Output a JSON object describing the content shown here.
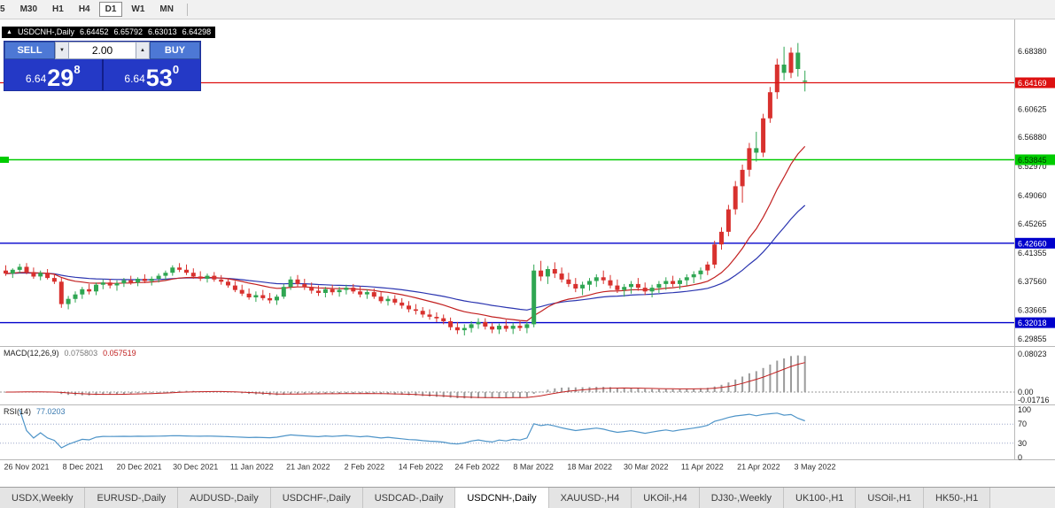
{
  "toolbar": {
    "timeframes": [
      "5",
      "M30",
      "H1",
      "H4",
      "D1",
      "W1",
      "MN"
    ],
    "active": "D1"
  },
  "quote_header": {
    "arrow_icon": "▲",
    "symbol": "USDCNH-,Daily",
    "open": "6.64452",
    "high": "6.65792",
    "low": "6.63013",
    "close": "6.64298"
  },
  "trade_panel": {
    "sell_label": "SELL",
    "buy_label": "BUY",
    "volume": "2.00",
    "decrease_icon": "▼",
    "increase_icon": "▲",
    "bid": {
      "full": "6.64298",
      "prefix": "6.64",
      "big": "29",
      "sup": "8"
    },
    "ask": {
      "full": "6.64530",
      "prefix": "6.64",
      "big": "53",
      "sup": "0"
    }
  },
  "tabs": {
    "active_index": 5,
    "items": [
      "USDX,Weekly",
      "EURUSD-,Daily",
      "AUDUSD-,Daily",
      "USDCHF-,Daily",
      "USDCAD-,Daily",
      "USDCNH-,Daily",
      "XAUUSD-,H4",
      "UKOil-,H4",
      "DJ30-,Weekly",
      "UK100-,H1",
      "USOil-,H1",
      "HK50-,H1"
    ]
  },
  "chart_data": {
    "type": "candlestick",
    "symbol": "USDCNH-,Daily",
    "y_range": [
      6.29,
      6.7265
    ],
    "y_ticks": [
      "6.68380",
      "6.60625",
      "6.56880",
      "6.52970",
      "6.49060",
      "6.45265",
      "6.41355",
      "6.37560",
      "6.33665",
      "6.29855"
    ],
    "levels": [
      {
        "value": 6.64169,
        "label": "6.64169",
        "color": "#dd1111",
        "text": "#ffffff",
        "on_top": true,
        "left_tag": false
      },
      {
        "value": 6.53845,
        "label": "6.53845",
        "color": "#00cc00",
        "text": "#003300",
        "on_top": false,
        "left_tag": true
      },
      {
        "value": 6.4266,
        "label": "6.42660",
        "color": "#0000cc",
        "text": "#ffffff",
        "on_top": false,
        "left_tag": false
      },
      {
        "value": 6.32018,
        "label": "6.32018",
        "color": "#0000cc",
        "text": "#ffffff",
        "on_top": false,
        "left_tag": false
      }
    ],
    "x_dates": [
      "26 Nov 2021",
      "8 Dec 2021",
      "20 Dec 2021",
      "30 Dec 2021",
      "11 Jan 2022",
      "21 Jan 2022",
      "2 Feb 2022",
      "14 Feb 2022",
      "24 Feb 2022",
      "8 Mar 2022",
      "18 Mar 2022",
      "30 Mar 2022",
      "11 Apr 2022",
      "21 Apr 2022",
      "3 May 2022"
    ],
    "colors": {
      "red_candle": "#d8312e",
      "green_candle": "#2fa652",
      "ma_fast": "#c22020",
      "ma_slow": "#2b35b0",
      "macd_histogram": "#9b9b9b",
      "macd_signal": "#c22020",
      "rsi_line": "#4e94c8"
    },
    "moving_averages": [
      {
        "period": 18,
        "color_key": "ma_fast"
      },
      {
        "period": 40,
        "color_key": "ma_slow"
      }
    ],
    "macd": {
      "label": "MACD(12,26,9)",
      "values": [
        "0.075803",
        "0.057519"
      ],
      "axis_ticks": [
        {
          "v": 0.08023,
          "label": "0.08023"
        },
        {
          "v": 0,
          "label": "0.00"
        },
        {
          "v": -0.01716,
          "label": "-0.01716"
        }
      ]
    },
    "rsi": {
      "label": "RSI(14)",
      "value": "77.0203",
      "axis_ticks": [
        100,
        70,
        30,
        0
      ],
      "levels": [
        70,
        30
      ]
    },
    "candles": [
      [
        6.39,
        6.397,
        6.383,
        6.386,
        "r"
      ],
      [
        6.386,
        6.393,
        6.38,
        6.391,
        "g"
      ],
      [
        6.391,
        6.399,
        6.387,
        6.395,
        "g"
      ],
      [
        6.395,
        6.4,
        6.385,
        6.388,
        "r"
      ],
      [
        6.388,
        6.394,
        6.379,
        6.382,
        "r"
      ],
      [
        6.382,
        6.39,
        6.377,
        6.387,
        "g"
      ],
      [
        6.387,
        6.392,
        6.378,
        6.38,
        "r"
      ],
      [
        6.38,
        6.386,
        6.372,
        6.375,
        "r"
      ],
      [
        6.375,
        6.38,
        6.34,
        6.345,
        "r"
      ],
      [
        6.345,
        6.356,
        6.338,
        6.352,
        "g"
      ],
      [
        6.352,
        6.362,
        6.347,
        6.358,
        "g"
      ],
      [
        6.358,
        6.368,
        6.352,
        6.365,
        "g"
      ],
      [
        6.365,
        6.372,
        6.358,
        6.362,
        "r"
      ],
      [
        6.362,
        6.374,
        6.357,
        6.371,
        "g"
      ],
      [
        6.371,
        6.378,
        6.365,
        6.374,
        "g"
      ],
      [
        6.374,
        6.379,
        6.366,
        6.37,
        "r"
      ],
      [
        6.37,
        6.377,
        6.363,
        6.373,
        "g"
      ],
      [
        6.373,
        6.38,
        6.368,
        6.377,
        "g"
      ],
      [
        6.377,
        6.383,
        6.371,
        6.374,
        "r"
      ],
      [
        6.374,
        6.381,
        6.369,
        6.379,
        "g"
      ],
      [
        6.379,
        6.385,
        6.373,
        6.376,
        "r"
      ],
      [
        6.376,
        6.382,
        6.37,
        6.379,
        "g"
      ],
      [
        6.379,
        6.386,
        6.374,
        6.383,
        "g"
      ],
      [
        6.383,
        6.39,
        6.377,
        6.387,
        "g"
      ],
      [
        6.387,
        6.397,
        6.383,
        6.394,
        "g"
      ],
      [
        6.394,
        6.4,
        6.388,
        6.391,
        "r"
      ],
      [
        6.391,
        6.398,
        6.384,
        6.387,
        "r"
      ],
      [
        6.387,
        6.393,
        6.379,
        6.382,
        "r"
      ],
      [
        6.382,
        6.389,
        6.376,
        6.379,
        "r"
      ],
      [
        6.379,
        6.386,
        6.374,
        6.383,
        "g"
      ],
      [
        6.383,
        6.388,
        6.375,
        6.378,
        "r"
      ],
      [
        6.378,
        6.384,
        6.371,
        6.375,
        "r"
      ],
      [
        6.375,
        6.38,
        6.367,
        6.37,
        "r"
      ],
      [
        6.37,
        6.376,
        6.361,
        6.364,
        "r"
      ],
      [
        6.364,
        6.371,
        6.356,
        6.359,
        "r"
      ],
      [
        6.359,
        6.366,
        6.351,
        6.354,
        "r"
      ],
      [
        6.354,
        6.362,
        6.348,
        6.357,
        "g"
      ],
      [
        6.357,
        6.364,
        6.35,
        6.353,
        "r"
      ],
      [
        6.353,
        6.36,
        6.346,
        6.35,
        "r"
      ],
      [
        6.35,
        6.358,
        6.344,
        6.355,
        "g"
      ],
      [
        6.355,
        6.372,
        6.352,
        6.368,
        "g"
      ],
      [
        6.368,
        6.382,
        6.364,
        6.378,
        "g"
      ],
      [
        6.378,
        6.384,
        6.368,
        6.372,
        "r"
      ],
      [
        6.372,
        6.379,
        6.364,
        6.368,
        "r"
      ],
      [
        6.368,
        6.374,
        6.359,
        6.363,
        "r"
      ],
      [
        6.363,
        6.37,
        6.356,
        6.36,
        "r"
      ],
      [
        6.36,
        6.368,
        6.354,
        6.365,
        "g"
      ],
      [
        6.365,
        6.371,
        6.357,
        6.361,
        "r"
      ],
      [
        6.361,
        6.368,
        6.355,
        6.364,
        "g"
      ],
      [
        6.364,
        6.371,
        6.358,
        6.367,
        "g"
      ],
      [
        6.367,
        6.372,
        6.359,
        6.362,
        "r"
      ],
      [
        6.362,
        6.369,
        6.354,
        6.358,
        "r"
      ],
      [
        6.358,
        6.365,
        6.352,
        6.361,
        "g"
      ],
      [
        6.361,
        6.366,
        6.352,
        6.355,
        "r"
      ],
      [
        6.355,
        6.361,
        6.346,
        6.349,
        "r"
      ],
      [
        6.349,
        6.356,
        6.343,
        6.352,
        "g"
      ],
      [
        6.352,
        6.357,
        6.344,
        6.347,
        "r"
      ],
      [
        6.347,
        6.353,
        6.339,
        6.343,
        "r"
      ],
      [
        6.343,
        6.349,
        6.334,
        6.338,
        "r"
      ],
      [
        6.338,
        6.345,
        6.331,
        6.336,
        "r"
      ],
      [
        6.336,
        6.341,
        6.327,
        6.331,
        "r"
      ],
      [
        6.331,
        6.338,
        6.324,
        6.328,
        "r"
      ],
      [
        6.328,
        6.334,
        6.321,
        6.326,
        "r"
      ],
      [
        6.326,
        6.331,
        6.318,
        6.322,
        "r"
      ],
      [
        6.322,
        6.327,
        6.31,
        6.314,
        "r"
      ],
      [
        6.314,
        6.321,
        6.305,
        6.31,
        "r"
      ],
      [
        6.31,
        6.318,
        6.303,
        6.313,
        "g"
      ],
      [
        6.313,
        6.322,
        6.307,
        6.318,
        "g"
      ],
      [
        6.318,
        6.326,
        6.312,
        6.321,
        "g"
      ],
      [
        6.321,
        6.326,
        6.311,
        6.315,
        "r"
      ],
      [
        6.315,
        6.32,
        6.306,
        6.311,
        "r"
      ],
      [
        6.311,
        6.319,
        6.305,
        6.316,
        "g"
      ],
      [
        6.316,
        6.324,
        6.308,
        6.312,
        "r"
      ],
      [
        6.312,
        6.32,
        6.305,
        6.316,
        "g"
      ],
      [
        6.316,
        6.322,
        6.309,
        6.313,
        "r"
      ],
      [
        6.313,
        6.321,
        6.306,
        6.318,
        "g"
      ],
      [
        6.318,
        6.398,
        6.314,
        6.39,
        "g"
      ],
      [
        6.39,
        6.403,
        6.376,
        6.382,
        "r"
      ],
      [
        6.382,
        6.396,
        6.372,
        6.392,
        "g"
      ],
      [
        6.392,
        6.401,
        6.38,
        6.386,
        "r"
      ],
      [
        6.386,
        6.394,
        6.374,
        6.378,
        "r"
      ],
      [
        6.378,
        6.387,
        6.368,
        6.372,
        "r"
      ],
      [
        6.372,
        6.38,
        6.361,
        6.366,
        "r"
      ],
      [
        6.366,
        6.375,
        6.357,
        6.371,
        "g"
      ],
      [
        6.371,
        6.38,
        6.363,
        6.376,
        "g"
      ],
      [
        6.376,
        6.385,
        6.368,
        6.381,
        "g"
      ],
      [
        6.381,
        6.39,
        6.372,
        6.377,
        "r"
      ],
      [
        6.377,
        6.384,
        6.366,
        6.37,
        "r"
      ],
      [
        6.37,
        6.378,
        6.36,
        6.364,
        "r"
      ],
      [
        6.364,
        6.372,
        6.355,
        6.368,
        "g"
      ],
      [
        6.368,
        6.376,
        6.359,
        6.372,
        "g"
      ],
      [
        6.372,
        6.38,
        6.363,
        6.367,
        "r"
      ],
      [
        6.367,
        6.374,
        6.357,
        6.362,
        "r"
      ],
      [
        6.362,
        6.371,
        6.354,
        6.367,
        "g"
      ],
      [
        6.367,
        6.376,
        6.36,
        6.372,
        "g"
      ],
      [
        6.372,
        6.381,
        6.364,
        6.376,
        "g"
      ],
      [
        6.376,
        6.383,
        6.368,
        6.372,
        "r"
      ],
      [
        6.372,
        6.38,
        6.365,
        6.377,
        "g"
      ],
      [
        6.377,
        6.385,
        6.37,
        6.381,
        "g"
      ],
      [
        6.381,
        6.389,
        6.373,
        6.385,
        "g"
      ],
      [
        6.385,
        6.394,
        6.378,
        6.39,
        "g"
      ],
      [
        6.39,
        6.402,
        6.384,
        6.398,
        "r"
      ],
      [
        6.398,
        6.43,
        6.393,
        6.425,
        "r"
      ],
      [
        6.425,
        6.448,
        6.418,
        6.442,
        "r"
      ],
      [
        6.442,
        6.478,
        6.436,
        6.472,
        "r"
      ],
      [
        6.472,
        6.51,
        6.465,
        6.503,
        "r"
      ],
      [
        6.503,
        6.532,
        6.481,
        6.525,
        "r"
      ],
      [
        6.525,
        6.561,
        6.516,
        6.554,
        "r"
      ],
      [
        6.554,
        6.576,
        6.536,
        6.548,
        "g"
      ],
      [
        6.548,
        6.6,
        6.542,
        6.594,
        "r"
      ],
      [
        6.594,
        6.636,
        6.588,
        6.629,
        "r"
      ],
      [
        6.629,
        6.674,
        6.62,
        6.666,
        "r"
      ],
      [
        6.666,
        6.69,
        6.645,
        6.655,
        "g"
      ],
      [
        6.655,
        6.689,
        6.648,
        6.682,
        "r"
      ],
      [
        6.682,
        6.695,
        6.65,
        6.66,
        "g"
      ],
      [
        6.6445,
        6.6579,
        6.6301,
        6.643,
        "g"
      ]
    ]
  }
}
